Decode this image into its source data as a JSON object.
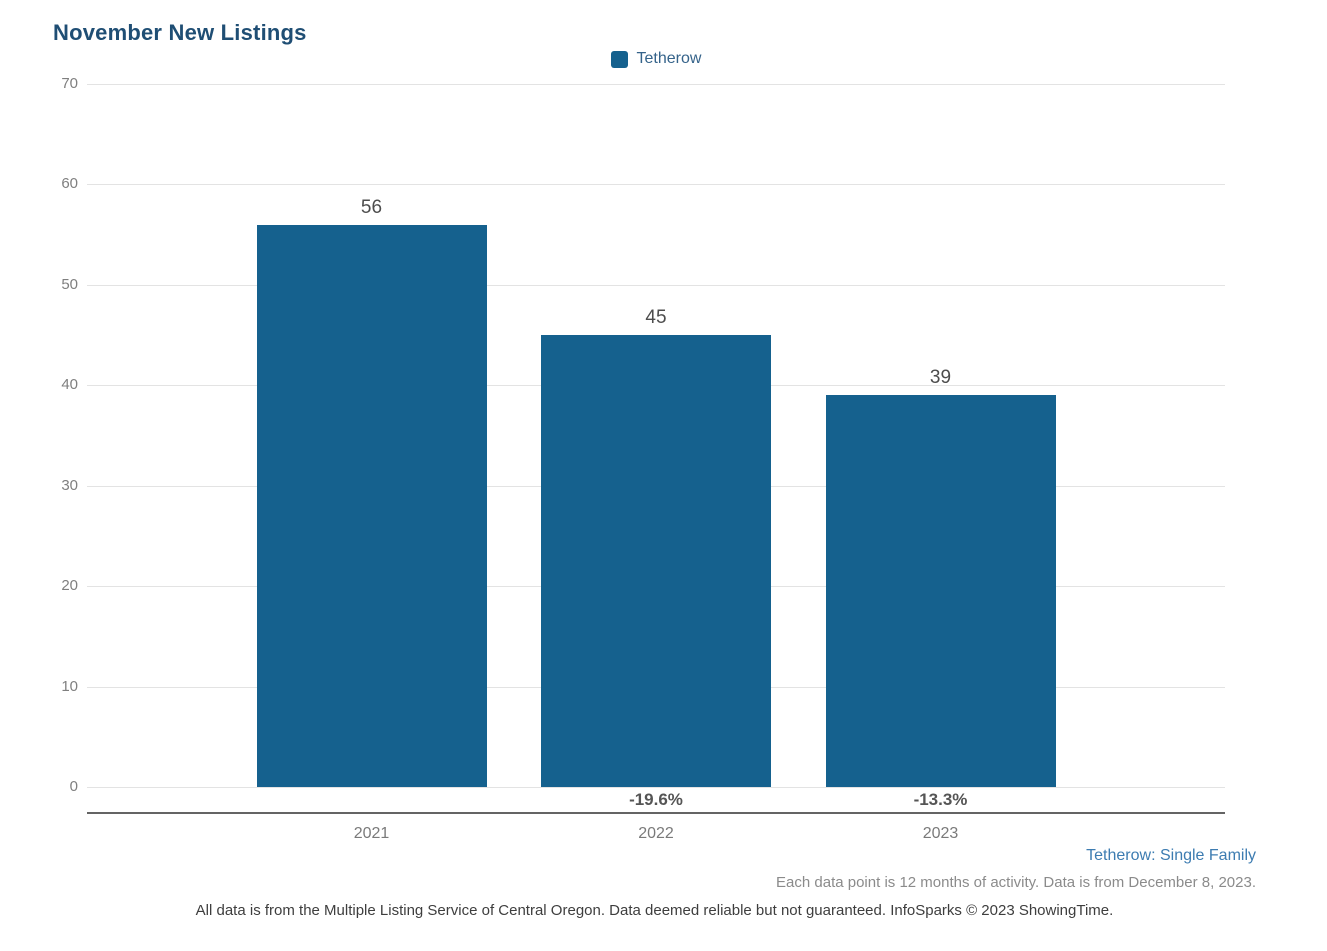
{
  "page": {
    "title": "November New Listings",
    "footnote_segment": "Tetherow: Single Family",
    "footnote_data": "Each data point is 12 months of activity. Data is from December 8, 2023.",
    "footnote_disclaimer": "All data is from the Multiple Listing Service of Central Oregon. Data deemed reliable but not guaranteed. InfoSparks © 2023 ShowingTime."
  },
  "legend": {
    "label": "Tetherow"
  },
  "chart_data": {
    "type": "bar",
    "title": "November New Listings",
    "categories": [
      "2021",
      "2022",
      "2023"
    ],
    "series": [
      {
        "name": "Tetherow",
        "values": [
          56,
          45,
          39
        ]
      }
    ],
    "value_labels": [
      "56",
      "45",
      "39"
    ],
    "pct_change_labels": [
      "",
      "-19.6%",
      "-13.3%"
    ],
    "xlabel": "",
    "ylabel": "",
    "ylim": [
      0,
      70
    ],
    "yticks": [
      0,
      10,
      20,
      30,
      40,
      50,
      60,
      70
    ],
    "grid": true,
    "legend_position": "top-center"
  },
  "colors": {
    "bar": "#15618e",
    "title": "#1f4e74",
    "link": "#3d7cb1",
    "gridline": "#e3e3e3",
    "axis_line": "#646464"
  }
}
